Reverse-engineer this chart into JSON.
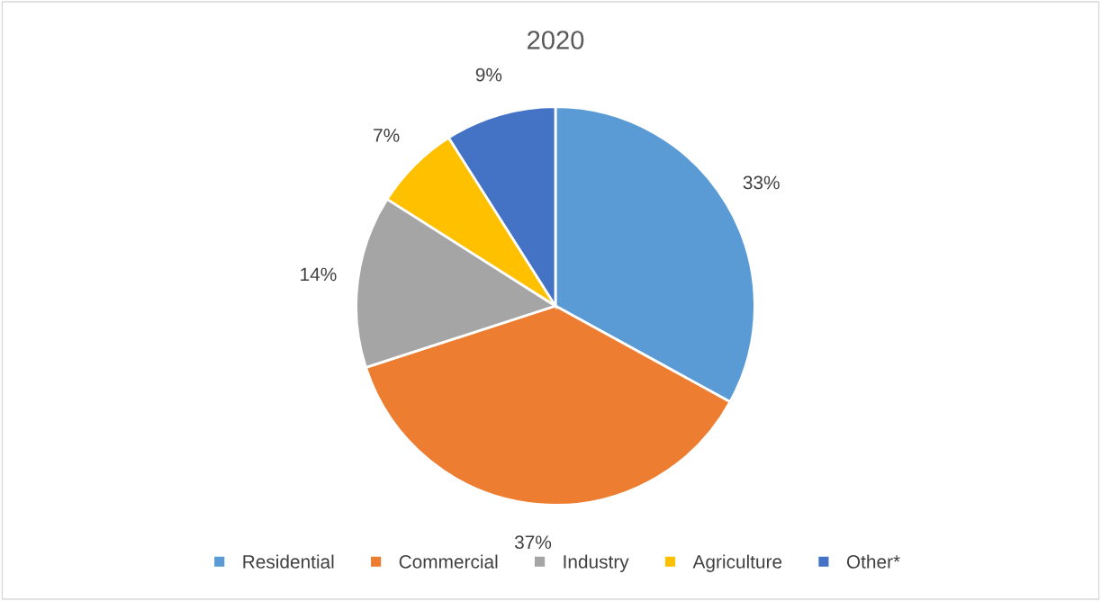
{
  "chart_data": {
    "type": "pie",
    "title": "2020",
    "categories": [
      "Residential",
      "Commercial",
      "Industry",
      "Agriculture",
      "Other*"
    ],
    "values": [
      33,
      37,
      14,
      7,
      9
    ],
    "colors": [
      "#5b9bd5",
      "#ed7d31",
      "#a5a5a5",
      "#ffc000",
      "#4472c4"
    ],
    "value_labels": [
      "33%",
      "37%",
      "14%",
      "7%",
      "9%"
    ],
    "legend": "bottom"
  }
}
